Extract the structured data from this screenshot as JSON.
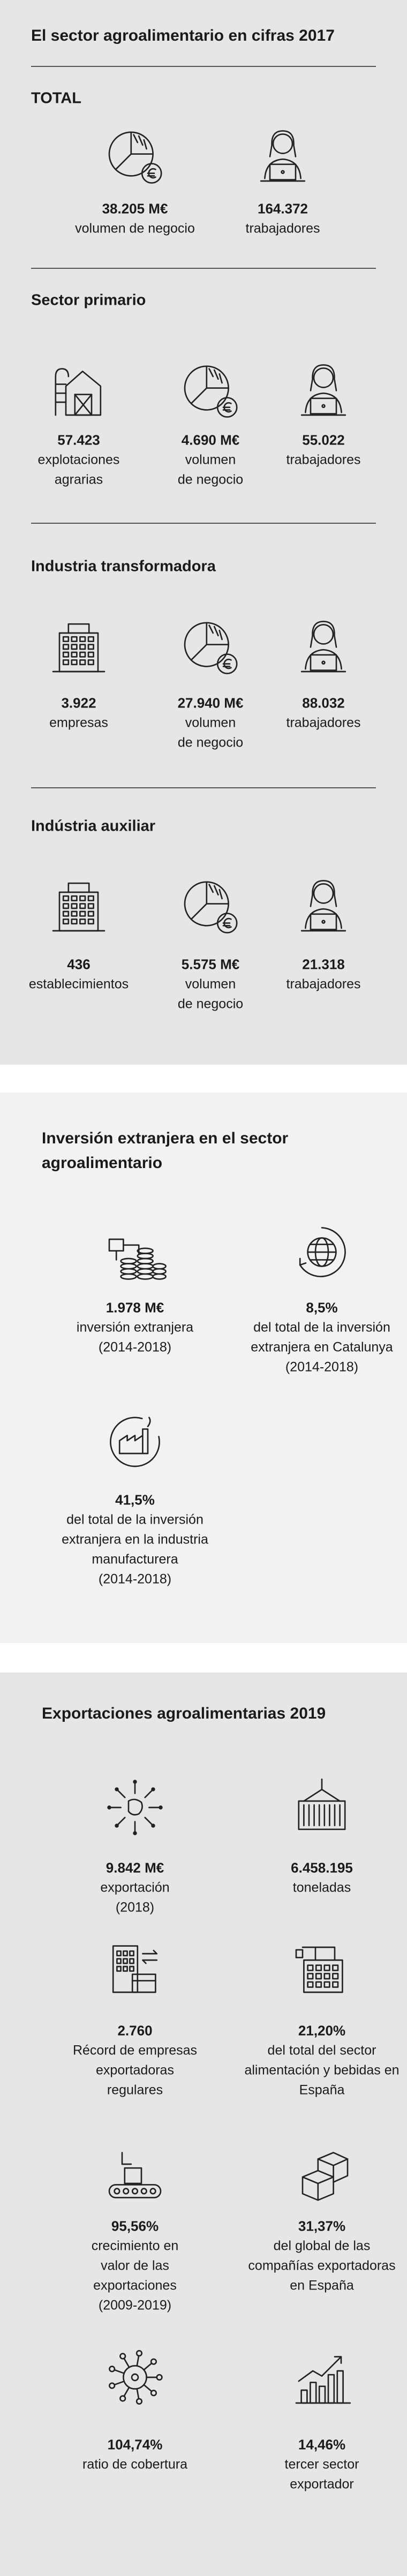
{
  "sections": [
    {
      "title": "El sector agroalimentario en cifras 2017",
      "groups": [
        {
          "title": "TOTAL",
          "items": [
            {
              "value": "38.205 M€",
              "label": [
                "volumen de negocio"
              ]
            },
            {
              "value": "164.372",
              "label": [
                "trabajadores"
              ]
            }
          ]
        },
        {
          "title": "Sector primario",
          "items": [
            {
              "value": "57.423",
              "label": [
                "explotaciones",
                "agrarias"
              ]
            },
            {
              "value": "4.690 M€",
              "label": [
                "volumen",
                "de negocio"
              ]
            },
            {
              "value": "55.022",
              "label": [
                "trabajadores"
              ]
            }
          ]
        },
        {
          "title": "Industria transformadora",
          "items": [
            {
              "value": "3.922",
              "label": [
                "empresas"
              ]
            },
            {
              "value": "27.940 M€",
              "label": [
                "volumen",
                "de negocio"
              ]
            },
            {
              "value": "88.032",
              "label": [
                "trabajadores"
              ]
            }
          ]
        },
        {
          "title": "Indústria auxiliar",
          "items": [
            {
              "value": "436",
              "label": [
                "establecimientos"
              ]
            },
            {
              "value": "5.575 M€",
              "label": [
                "volumen",
                "de negocio"
              ]
            },
            {
              "value": "21.318",
              "label": [
                "trabajadores"
              ]
            }
          ]
        }
      ]
    },
    {
      "title": [
        "Inversión extranjera en el sector",
        "agroalimentario"
      ],
      "items": [
        {
          "value": "1.978 M€",
          "label": [
            "inversión extranjera",
            "(2014-2018)"
          ]
        },
        {
          "value": "8,5%",
          "label": [
            "del total de la inversión",
            "extranjera en Catalunya",
            "(2014-2018)"
          ]
        },
        {
          "value": "41,5%",
          "label": [
            "del total de la inversión",
            "extranjera en la industria",
            "manufacturera",
            "(2014-2018)"
          ]
        }
      ]
    },
    {
      "title": "Exportaciones agroalimentarias 2019",
      "items": [
        {
          "value": "9.842 M€",
          "label": [
            "exportación",
            "(2018)"
          ]
        },
        {
          "value": "6.458.195",
          "label": [
            "toneladas"
          ]
        },
        {
          "value": "2.760",
          "label": [
            "Récord de empresas",
            "exportadoras",
            "regulares"
          ]
        },
        {
          "value": "21,20%",
          "label": [
            "del total del sector",
            "alimentación y bebidas en",
            "España"
          ]
        },
        {
          "value": "95,56%",
          "label": [
            "crecimiento en",
            "valor de las",
            "exportaciones",
            "(2009-2019)"
          ]
        },
        {
          "value": "31,37%",
          "label": [
            "del global de las",
            "compañías exportadoras",
            "en España"
          ]
        },
        {
          "value": "104,74%",
          "label": [
            "ratio de cobertura"
          ]
        },
        {
          "value": "14,46%",
          "label": [
            "tercer sector",
            "exportador"
          ]
        }
      ]
    }
  ]
}
